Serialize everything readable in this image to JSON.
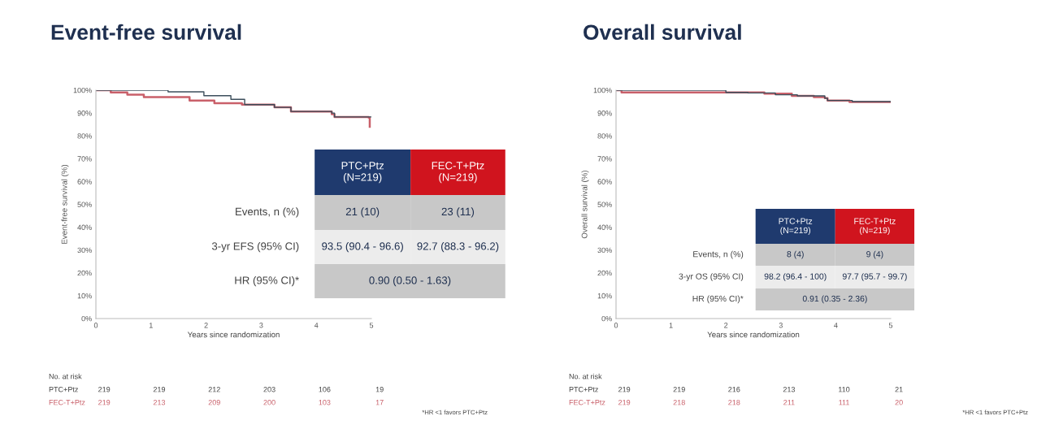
{
  "chart_data": [
    {
      "type": "step",
      "title": "Event-free survival",
      "xlabel": "Years since randomization",
      "ylabel": "Event-free survival (%)",
      "xlim": [
        0,
        5
      ],
      "xticks": [
        0,
        1,
        2,
        3,
        4,
        5
      ],
      "ylim": [
        0,
        100
      ],
      "yticks": [
        {
          "value": 0,
          "label": "0%"
        },
        {
          "value": 10,
          "label": "10%"
        },
        {
          "value": 20,
          "label": "20%"
        },
        {
          "value": 30,
          "label": "30%"
        },
        {
          "value": 40,
          "label": "40%"
        },
        {
          "value": 50,
          "label": "50%"
        },
        {
          "value": 60,
          "label": "60%"
        },
        {
          "value": 70,
          "label": "70%"
        },
        {
          "value": 80,
          "label": "80%"
        },
        {
          "value": 90,
          "label": "90%"
        },
        {
          "value": 100,
          "label": "100%"
        }
      ],
      "series": [
        {
          "color": "#3d4f5c",
          "x": [
            0,
            1.31,
            1.96,
            2.45,
            2.7,
            3.24,
            3.54,
            4.28,
            4.33,
            5.0
          ],
          "values": [
            100,
            99.3,
            97.6,
            96,
            93.7,
            92.5,
            90.7,
            90,
            88.3,
            88.3
          ]
        },
        {
          "color": "#c9606a",
          "x": [
            0,
            0.27,
            0.57,
            0.87,
            1.7,
            2.15,
            2.65,
            3.24,
            3.54,
            4.28,
            4.33,
            4.95,
            4.97
          ],
          "values": [
            100,
            99,
            98,
            97,
            95.5,
            94.3,
            93.7,
            92.5,
            90.7,
            89.5,
            88.3,
            88,
            84
          ]
        }
      ],
      "annotations": [
        "PTC+Ptz\n(N=219)",
        "FEC-T+Ptz\n(N=219)",
        "Events, n (%)",
        "21 (10)",
        "23 (11)",
        "3-yr EFS (95% CI)",
        "93.5 (90.4 - 96.6)",
        "92.7 (88.3 - 96.2)",
        "HR (95% CI)*",
        "0.90 (0.50 - 1.63)",
        "No. at risk",
        "PTC+Ptz",
        "219",
        "219",
        "212",
        "203",
        "106",
        "19",
        "FEC-T+Ptz",
        "219",
        "213",
        "209",
        "200",
        "103",
        "17",
        "*HR <1 favors PTC+Ptz"
      ]
    },
    {
      "type": "step",
      "title": "Overall survival",
      "xlabel": "Years since randomization",
      "ylabel": "Overall survival (%)",
      "xlim": [
        0,
        5
      ],
      "xticks": [
        0,
        1,
        2,
        3,
        4,
        5
      ],
      "ylim": [
        0,
        100
      ],
      "yticks": [
        {
          "value": 0,
          "label": "0%"
        },
        {
          "value": 10,
          "label": "10%"
        },
        {
          "value": 20,
          "label": "20%"
        },
        {
          "value": 30,
          "label": "30%"
        },
        {
          "value": 40,
          "label": "40%"
        },
        {
          "value": 50,
          "label": "50%"
        },
        {
          "value": 60,
          "label": "60%"
        },
        {
          "value": 70,
          "label": "70%"
        },
        {
          "value": 80,
          "label": "80%"
        },
        {
          "value": 90,
          "label": "90%"
        },
        {
          "value": 100,
          "label": "100%"
        }
      ],
      "series": [
        {
          "color": "#3d4f5c",
          "x": [
            0,
            2.0,
            2.4,
            2.9,
            3.3,
            3.8,
            3.85,
            4.3,
            5.0
          ],
          "values": [
            100,
            99,
            98.8,
            98,
            97.5,
            96.5,
            95.5,
            95,
            95
          ]
        },
        {
          "color": "#c9606a",
          "x": [
            0,
            0.1,
            2.0,
            2.7,
            3.2,
            3.6,
            3.8,
            3.85,
            4.25,
            5.0
          ],
          "values": [
            100,
            99,
            99,
            98.5,
            97.5,
            97,
            96.5,
            95.5,
            94.8,
            94.8
          ]
        }
      ],
      "annotations": [
        "PTC+Ptz\n(N=219)",
        "FEC-T+Ptz\n(N=219)",
        "Events, n (%)",
        "8 (4)",
        "9 (4)",
        "3-yr OS (95% CI)",
        "98.2 (96.4 - 100)",
        "97.7 (95.7 - 99.7)",
        "HR (95% CI)*",
        "0.91 (0.35 - 2.36)",
        "No. at risk",
        "PTC+Ptz",
        "219",
        "219",
        "216",
        "213",
        "110",
        "21",
        "FEC-T+Ptz",
        "219",
        "218",
        "218",
        "211",
        "111",
        "20",
        "*HR <1 favors PTC+Ptz"
      ]
    }
  ]
}
